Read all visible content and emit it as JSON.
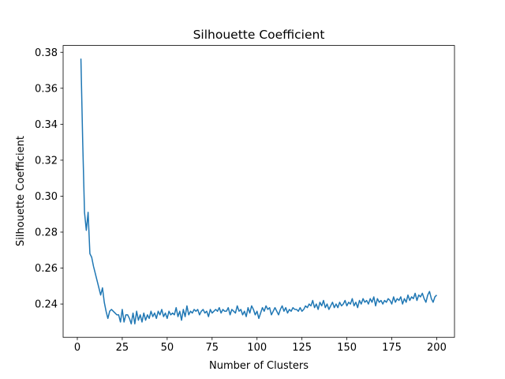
{
  "chart_data": {
    "type": "line",
    "title": "Silhouette Coefficient",
    "x_label": "Number of Clusters",
    "y_label": "Silhouette Coefficient",
    "x": [
      2,
      3,
      4,
      5,
      6,
      7,
      8,
      9,
      10,
      11,
      12,
      13,
      14,
      15,
      16,
      17,
      18,
      19,
      20,
      21,
      22,
      23,
      24,
      25,
      26,
      27,
      28,
      29,
      30,
      31,
      32,
      33,
      34,
      35,
      36,
      37,
      38,
      39,
      40,
      41,
      42,
      43,
      44,
      45,
      46,
      47,
      48,
      49,
      50,
      51,
      52,
      53,
      54,
      55,
      56,
      57,
      58,
      59,
      60,
      61,
      62,
      63,
      64,
      65,
      66,
      67,
      68,
      69,
      70,
      71,
      72,
      73,
      74,
      75,
      76,
      77,
      78,
      79,
      80,
      81,
      82,
      83,
      84,
      85,
      86,
      87,
      88,
      89,
      90,
      91,
      92,
      93,
      94,
      95,
      96,
      97,
      98,
      99,
      100,
      101,
      102,
      103,
      104,
      105,
      106,
      107,
      108,
      109,
      110,
      111,
      112,
      113,
      114,
      115,
      116,
      117,
      118,
      119,
      120,
      121,
      122,
      123,
      124,
      125,
      126,
      127,
      128,
      129,
      130,
      131,
      132,
      133,
      134,
      135,
      136,
      137,
      138,
      139,
      140,
      141,
      142,
      143,
      144,
      145,
      146,
      147,
      148,
      149,
      150,
      151,
      152,
      153,
      154,
      155,
      156,
      157,
      158,
      159,
      160,
      161,
      162,
      163,
      164,
      165,
      166,
      167,
      168,
      169,
      170,
      171,
      172,
      173,
      174,
      175,
      176,
      177,
      178,
      179,
      180,
      181,
      182,
      183,
      184,
      185,
      186,
      187,
      188,
      189,
      190,
      191,
      192,
      193,
      194,
      195,
      196,
      197,
      198,
      199,
      200
    ],
    "series": [
      {
        "color": "#1f77b4",
        "values": [
          0.3765,
          0.33,
          0.291,
          0.281,
          0.291,
          0.268,
          0.266,
          0.261,
          0.257,
          0.253,
          0.249,
          0.245,
          0.249,
          0.241,
          0.236,
          0.232,
          0.236,
          0.237,
          0.236,
          0.235,
          0.234,
          0.234,
          0.23,
          0.237,
          0.23,
          0.234,
          0.234,
          0.232,
          0.229,
          0.235,
          0.229,
          0.236,
          0.231,
          0.234,
          0.23,
          0.235,
          0.231,
          0.234,
          0.232,
          0.236,
          0.233,
          0.235,
          0.232,
          0.236,
          0.234,
          0.237,
          0.233,
          0.235,
          0.232,
          0.236,
          0.234,
          0.235,
          0.234,
          0.238,
          0.233,
          0.236,
          0.231,
          0.237,
          0.233,
          0.239,
          0.234,
          0.236,
          0.235,
          0.237,
          0.236,
          0.237,
          0.234,
          0.236,
          0.237,
          0.235,
          0.236,
          0.233,
          0.237,
          0.235,
          0.236,
          0.237,
          0.236,
          0.238,
          0.235,
          0.237,
          0.236,
          0.236,
          0.238,
          0.234,
          0.237,
          0.236,
          0.235,
          0.239,
          0.236,
          0.237,
          0.234,
          0.236,
          0.233,
          0.238,
          0.235,
          0.239,
          0.237,
          0.234,
          0.236,
          0.232,
          0.235,
          0.238,
          0.236,
          0.239,
          0.237,
          0.238,
          0.234,
          0.236,
          0.238,
          0.236,
          0.234,
          0.237,
          0.239,
          0.236,
          0.238,
          0.235,
          0.237,
          0.236,
          0.238,
          0.237,
          0.237,
          0.236,
          0.238,
          0.236,
          0.237,
          0.239,
          0.238,
          0.24,
          0.239,
          0.242,
          0.238,
          0.24,
          0.237,
          0.241,
          0.239,
          0.242,
          0.238,
          0.24,
          0.237,
          0.239,
          0.241,
          0.238,
          0.24,
          0.238,
          0.241,
          0.239,
          0.24,
          0.242,
          0.239,
          0.241,
          0.24,
          0.243,
          0.239,
          0.241,
          0.238,
          0.242,
          0.24,
          0.243,
          0.241,
          0.242,
          0.24,
          0.243,
          0.241,
          0.244,
          0.239,
          0.243,
          0.241,
          0.242,
          0.24,
          0.242,
          0.241,
          0.243,
          0.242,
          0.24,
          0.244,
          0.241,
          0.243,
          0.242,
          0.244,
          0.24,
          0.243,
          0.241,
          0.245,
          0.242,
          0.244,
          0.243,
          0.246,
          0.242,
          0.245,
          0.244,
          0.246,
          0.243,
          0.241,
          0.245,
          0.247,
          0.243,
          0.241,
          0.244,
          0.245
        ]
      }
    ],
    "xlim": [
      -7.9,
      209.9
    ],
    "xticks": [
      0,
      25,
      50,
      75,
      100,
      125,
      150,
      175,
      200
    ],
    "ylim": [
      0.2215,
      0.3838
    ],
    "yticks": [
      0.24,
      0.26,
      0.28,
      {
        "value": 0.3,
        "label": "0.30"
      },
      0.32,
      0.34,
      0.36,
      0.38
    ]
  }
}
